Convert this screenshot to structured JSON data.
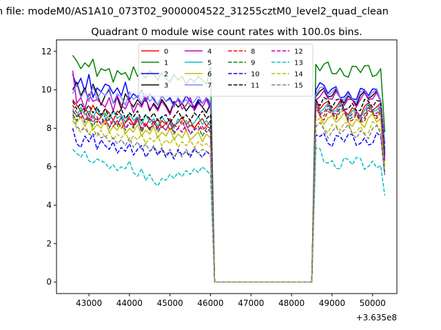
{
  "figure": {
    "suptitle": "n file: modeM0/AS1A10_073T02_9000004522_31255cztM0_level2_quad_clean",
    "title": "Quadrant 0 module wise count rates with 100.0s bins.",
    "offset_label": "+3.635e8"
  },
  "chart_data": {
    "type": "line",
    "title": "Quadrant 0 module wise count rates with 100.0s bins.",
    "xlabel": "",
    "ylabel": "",
    "x_offset": 363500000,
    "xlim": [
      363542200,
      363550600
    ],
    "ylim": [
      -0.6,
      12.6
    ],
    "xticks": [
      43000,
      44000,
      45000,
      46000,
      47000,
      48000,
      49000,
      50000
    ],
    "yticks": [
      0,
      2,
      4,
      6,
      8,
      10,
      12
    ],
    "grid": false,
    "legend": {
      "placement": "top-center",
      "ncol": 4
    },
    "segments": [
      {
        "x_start": 363542600,
        "step": 100,
        "count": 35
      },
      {
        "x_start": 363546100,
        "step": 100,
        "count": 25
      },
      {
        "x_start": 363548600,
        "step": 100,
        "count": 18
      }
    ],
    "series": [
      {
        "name": "0",
        "color": "#ff0000",
        "dash": "solid",
        "base": 9.0,
        "peak": 9.6,
        "tail": 6.5,
        "values": [
          9.5,
          9.2,
          8.9,
          9.1,
          8.7,
          9.2,
          8.8,
          8.6,
          9.0,
          8.8,
          8.4,
          8.9,
          8.7,
          8.3,
          8.5,
          8.2,
          8.6,
          8.4,
          8.1,
          8.5,
          8.3,
          8.0,
          8.4,
          8.2,
          8.5,
          8.1,
          8.3,
          8.6,
          8.2,
          8.4,
          8.0,
          8.3,
          8.5,
          8.1,
          8.4
        ]
      },
      {
        "name": "1",
        "color": "#008000",
        "dash": "solid",
        "base": 11.0,
        "peak": 11.2,
        "tail": 7.8,
        "values": [
          11.8,
          11.5,
          11.1,
          11.4,
          11.2,
          11.6,
          10.7,
          11.1,
          11.0,
          11.1,
          10.4,
          11.0,
          10.8,
          10.9,
          10.5,
          11.2,
          10.7,
          10.9,
          10.6,
          11.0,
          10.8,
          10.5,
          10.9,
          10.6,
          10.4,
          10.8,
          10.5,
          10.7,
          10.3,
          10.6,
          10.4,
          10.7,
          10.5,
          10.3,
          11.2
        ]
      },
      {
        "name": "2",
        "color": "#0000ff",
        "dash": "solid",
        "base": 9.8,
        "peak": 10.4,
        "tail": 7.2,
        "values": [
          10.8,
          10.2,
          10.6,
          9.9,
          10.8,
          9.6,
          10.1,
          9.9,
          10.3,
          10.2,
          9.8,
          10.1,
          9.7,
          10.4,
          9.5,
          9.8,
          9.6,
          10.0,
          9.4,
          9.8,
          9.5,
          9.2,
          9.7,
          9.4,
          9.6,
          9.2,
          9.5,
          9.3,
          9.7,
          9.4,
          9.1,
          9.5,
          9.3,
          9.6,
          9.2
        ]
      },
      {
        "name": "3",
        "color": "#000000",
        "dash": "solid",
        "base": 9.6,
        "peak": 10.1,
        "tail": 6.9,
        "values": [
          10.0,
          10.4,
          9.7,
          10.1,
          9.4,
          10.3,
          9.8,
          9.2,
          9.7,
          10.0,
          9.3,
          9.6,
          9.0,
          9.8,
          9.4,
          9.1,
          9.5,
          9.2,
          9.6,
          8.9,
          9.3,
          9.0,
          9.5,
          9.2,
          8.8,
          9.4,
          9.1,
          9.3,
          8.9,
          9.2,
          9.0,
          9.4,
          9.1,
          8.8,
          9.3
        ]
      },
      {
        "name": "4",
        "color": "#bf00bf",
        "dash": "solid",
        "base": 9.5,
        "peak": 9.9,
        "tail": 6.8,
        "values": [
          11.0,
          9.3,
          9.6,
          9.0,
          9.8,
          9.4,
          9.5,
          9.3,
          9.1,
          9.6,
          8.9,
          9.7,
          9.2,
          9.0,
          9.5,
          8.8,
          9.3,
          9.1,
          9.6,
          9.0,
          9.2,
          8.9,
          9.4,
          9.1,
          8.7,
          9.3,
          9.5,
          9.0,
          9.2,
          9.6,
          8.9,
          9.3,
          9.1,
          9.5,
          9.0
        ]
      },
      {
        "name": "5",
        "color": "#00bfbf",
        "dash": "solid",
        "base": 8.9,
        "peak": 9.4,
        "tail": 6.4,
        "values": [
          9.0,
          8.6,
          9.1,
          8.7,
          8.9,
          8.5,
          9.0,
          8.6,
          8.8,
          8.4,
          8.9,
          8.5,
          8.7,
          8.3,
          8.8,
          8.4,
          8.6,
          8.2,
          8.7,
          8.3,
          8.5,
          8.1,
          8.6,
          8.3,
          8.4,
          8.0,
          8.5,
          8.2,
          8.4,
          8.1,
          8.3,
          8.6,
          8.2,
          8.4,
          8.1
        ]
      },
      {
        "name": "6",
        "color": "#bfbf00",
        "dash": "solid",
        "base": 8.4,
        "peak": 8.9,
        "tail": 6.0,
        "values": [
          8.8,
          8.3,
          8.6,
          8.1,
          8.5,
          7.9,
          8.2,
          8.0,
          8.4,
          7.8,
          8.1,
          7.9,
          8.3,
          7.7,
          8.0,
          7.8,
          8.2,
          7.6,
          7.9,
          7.7,
          8.1,
          7.5,
          7.8,
          7.6,
          8.0,
          7.4,
          7.7,
          7.5,
          7.9,
          7.4,
          7.6,
          7.8,
          7.3,
          7.7,
          7.5
        ]
      },
      {
        "name": "7",
        "color": "#8080ff",
        "dash": "solid",
        "base": 9.7,
        "peak": 10.2,
        "tail": 7.0,
        "values": [
          9.8,
          10.3,
          9.6,
          10.0,
          9.4,
          10.2,
          9.5,
          9.9,
          9.7,
          10.1,
          9.3,
          9.8,
          9.6,
          9.2,
          9.9,
          9.5,
          9.7,
          9.3,
          9.8,
          9.4,
          9.6,
          9.2,
          9.7,
          9.4,
          9.5,
          9.1,
          9.6,
          9.3,
          9.5,
          9.2,
          9.4,
          9.7,
          9.3,
          9.6,
          9.4
        ]
      },
      {
        "name": "8",
        "color": "#ff0000",
        "dash": "dashed",
        "base": 8.6,
        "peak": 9.0,
        "tail": 6.2,
        "values": [
          9.2,
          8.8,
          8.5,
          8.9,
          8.4,
          8.7,
          8.3,
          8.6,
          8.2,
          8.5,
          8.1,
          8.4,
          8.0,
          8.3,
          8.6,
          8.1,
          8.4,
          8.0,
          8.3,
          7.9,
          8.2,
          8.5,
          8.0,
          8.3,
          7.9,
          8.2,
          8.0,
          8.4,
          7.9,
          8.2,
          8.0,
          8.3,
          7.9,
          8.1,
          8.0
        ]
      },
      {
        "name": "9",
        "color": "#008000",
        "dash": "dashed",
        "base": 8.7,
        "peak": 9.2,
        "tail": 6.3,
        "values": [
          8.7,
          8.4,
          8.9,
          8.3,
          8.6,
          8.1,
          8.5,
          8.2,
          8.7,
          8.0,
          8.4,
          8.1,
          8.6,
          7.9,
          8.3,
          8.0,
          8.5,
          7.8,
          8.2,
          7.9,
          8.4,
          7.8,
          8.1,
          7.9,
          8.3,
          7.7,
          8.0,
          7.8,
          8.2,
          7.7,
          7.9,
          8.1,
          7.6,
          8.0,
          7.8
        ]
      },
      {
        "name": "10",
        "color": "#0000ff",
        "dash": "dashed",
        "base": 7.4,
        "peak": 7.8,
        "tail": 5.6,
        "values": [
          8.0,
          7.2,
          7.0,
          7.6,
          7.3,
          7.7,
          6.9,
          7.4,
          7.1,
          6.9,
          7.3,
          6.7,
          7.0,
          6.8,
          7.2,
          6.6,
          6.9,
          7.1,
          6.5,
          6.8,
          7.0,
          6.6,
          6.9,
          6.5,
          6.8,
          6.4,
          6.9,
          6.6,
          6.8,
          6.5,
          6.9,
          6.7,
          6.5,
          6.8,
          6.6
        ]
      },
      {
        "name": "11",
        "color": "#000000",
        "dash": "dashed",
        "base": 9.2,
        "peak": 9.7,
        "tail": 6.6,
        "values": [
          9.4,
          9.0,
          9.3,
          8.9,
          9.2,
          8.8,
          9.1,
          8.7,
          9.0,
          8.6,
          8.9,
          8.7,
          9.0,
          8.5,
          8.8,
          8.6,
          8.9,
          8.4,
          8.7,
          8.5,
          8.8,
          8.4,
          8.6,
          8.7,
          8.3,
          8.6,
          8.9,
          8.5,
          8.7,
          8.4,
          8.8,
          8.6,
          8.9,
          8.5,
          8.7
        ]
      },
      {
        "name": "12",
        "color": "#bf00bf",
        "dash": "dashed",
        "base": 8.8,
        "peak": 9.3,
        "tail": 6.3,
        "values": [
          8.9,
          8.6,
          8.8,
          8.4,
          8.7,
          8.3,
          8.6,
          8.2,
          8.5,
          8.1,
          8.4,
          8.2,
          8.6,
          8.0,
          8.3,
          8.1,
          8.5,
          7.9,
          8.2,
          8.0,
          8.4,
          7.9,
          8.1,
          7.9,
          8.3,
          7.8,
          8.0,
          7.8,
          8.2,
          7.7,
          8.0,
          7.9,
          8.1,
          7.8,
          8.0
        ]
      },
      {
        "name": "13",
        "color": "#00bfbf",
        "dash": "dashed",
        "base": 6.2,
        "peak": 6.7,
        "tail": 4.5,
        "values": [
          6.9,
          6.7,
          6.5,
          6.8,
          6.3,
          6.2,
          6.4,
          6.3,
          6.2,
          5.9,
          6.1,
          5.8,
          6.0,
          5.9,
          6.3,
          5.7,
          5.5,
          5.9,
          5.3,
          5.6,
          5.2,
          5.0,
          5.4,
          5.3,
          5.6,
          5.4,
          5.7,
          5.5,
          5.8,
          5.6,
          5.9,
          5.7,
          6.0,
          5.8,
          5.6
        ]
      },
      {
        "name": "14",
        "color": "#bfbf00",
        "dash": "dashed",
        "base": 8.0,
        "peak": 8.5,
        "tail": 5.8,
        "values": [
          8.4,
          8.0,
          7.8,
          8.2,
          7.7,
          8.0,
          7.6,
          7.9,
          7.5,
          7.8,
          7.4,
          7.7,
          7.5,
          7.8,
          7.3,
          7.6,
          7.4,
          7.7,
          7.2,
          7.5,
          7.3,
          7.6,
          7.1,
          7.4,
          7.2,
          7.5,
          7.0,
          7.3,
          7.1,
          7.4,
          7.0,
          7.3,
          7.1,
          7.2,
          7.0
        ]
      },
      {
        "name": "15",
        "color": "#808080",
        "dash": "dashed",
        "base": 7.8,
        "peak": 8.3,
        "tail": 5.5,
        "values": [
          8.6,
          8.1,
          7.9,
          8.0,
          7.7,
          7.6,
          7.8,
          7.5,
          7.6,
          7.3,
          7.5,
          7.2,
          7.4,
          7.1,
          7.5,
          7.0,
          7.3,
          6.9,
          7.2,
          6.8,
          7.1,
          6.7,
          7.0,
          6.6,
          6.9,
          6.5,
          6.8,
          6.5,
          6.9,
          6.6,
          7.0,
          6.7,
          6.9,
          6.8,
          6.7
        ]
      }
    ]
  }
}
